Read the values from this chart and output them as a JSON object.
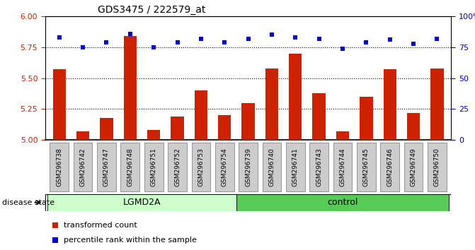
{
  "title": "GDS3475 / 222579_at",
  "samples": [
    "GSM296738",
    "GSM296742",
    "GSM296747",
    "GSM296748",
    "GSM296751",
    "GSM296752",
    "GSM296753",
    "GSM296754",
    "GSM296739",
    "GSM296740",
    "GSM296741",
    "GSM296743",
    "GSM296744",
    "GSM296745",
    "GSM296746",
    "GSM296749",
    "GSM296750"
  ],
  "bar_values": [
    5.57,
    5.07,
    5.18,
    5.84,
    5.08,
    5.19,
    5.4,
    5.2,
    5.3,
    5.58,
    5.7,
    5.38,
    5.07,
    5.35,
    5.57,
    5.22,
    5.58
  ],
  "dot_values": [
    83,
    75,
    79,
    86,
    75,
    79,
    82,
    79,
    82,
    85,
    83,
    82,
    74,
    79,
    81,
    78,
    82
  ],
  "groups": [
    {
      "label": "LGMD2A",
      "start": 0,
      "end": 7,
      "color": "#ccffcc"
    },
    {
      "label": "control",
      "start": 8,
      "end": 16,
      "color": "#55cc55"
    }
  ],
  "ylim_left": [
    5.0,
    6.0
  ],
  "ylim_right": [
    0,
    100
  ],
  "yticks_left": [
    5.0,
    5.25,
    5.5,
    5.75,
    6.0
  ],
  "yticks_right": [
    0,
    25,
    50,
    75,
    100
  ],
  "bar_color": "#cc2200",
  "dot_color": "#0000cc",
  "tick_box_color": "#cccccc",
  "tick_box_edge": "#888888",
  "legend_bar_label": "transformed count",
  "legend_dot_label": "percentile rank within the sample",
  "disease_state_label": "disease state",
  "bar_width": 0.55
}
